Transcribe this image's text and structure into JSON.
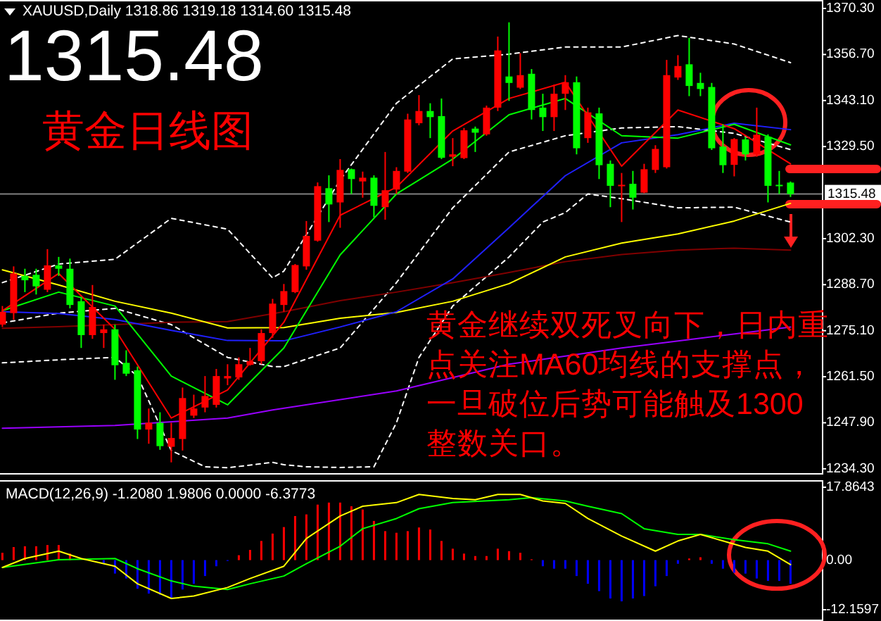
{
  "chart_data": [
    {
      "type": "candlestick",
      "title": "XAUUSD,Daily 1318.86 1319.18 1314.60 1315.48",
      "annotations": [
        "1315.48",
        "黄金日线图",
        "黄金继续双死叉向下，日内重",
        "点关注MA60均线的支撑点，",
        "一旦破位后势可能触及1300",
        "整数关口。"
      ],
      "categories": [
        null,
        null,
        null,
        null,
        null,
        null,
        null,
        null,
        null,
        null,
        null,
        null,
        null,
        null,
        null,
        null,
        null,
        null,
        null,
        null,
        null,
        null,
        null,
        null,
        null,
        null,
        null,
        null,
        null,
        null,
        null,
        null,
        null,
        null,
        null,
        null,
        null,
        null,
        null,
        null,
        null,
        null,
        null,
        null,
        null,
        null,
        null,
        null,
        null,
        null,
        null,
        null,
        null,
        null,
        null,
        null,
        null,
        null,
        null,
        null,
        null,
        null,
        null,
        null,
        null,
        null,
        null,
        null,
        null,
        null,
        null
      ],
      "ohlc": [
        [
          1276.9,
          1282.4,
          1276.2,
          1280.7
        ],
        [
          1280.3,
          1294.1,
          1278.3,
          1292.0
        ],
        [
          1291.3,
          1293.4,
          1286.5,
          1290.0
        ],
        [
          1291.6,
          1293.4,
          1285.8,
          1288.2
        ],
        [
          1287.2,
          1299.2,
          1286.5,
          1294.4
        ],
        [
          1294.4,
          1296.9,
          1291.3,
          1293.4
        ],
        [
          1293.4,
          1296.4,
          1281.7,
          1282.7
        ],
        [
          1283.8,
          1285.1,
          1270.0,
          1273.8
        ],
        [
          1273.8,
          1288.6,
          1272.7,
          1282.1
        ],
        [
          1274.4,
          1276.9,
          1270.0,
          1275.5
        ],
        [
          1275.5,
          1276.9,
          1260.6,
          1264.9
        ],
        [
          1265.6,
          1269.3,
          1261.7,
          1262.4
        ],
        [
          1263.4,
          1264.5,
          1243.1,
          1245.9
        ],
        [
          1245.9,
          1252.1,
          1241.7,
          1247.9
        ],
        [
          1247.9,
          1251.0,
          1239.9,
          1241.0
        ],
        [
          1240.8,
          1247.9,
          1236.2,
          1243.4
        ],
        [
          1243.1,
          1258.3,
          1239.7,
          1255.2
        ],
        [
          1250.0,
          1256.2,
          1249.3,
          1252.1
        ],
        [
          1252.4,
          1261.7,
          1251.0,
          1255.8
        ],
        [
          1253.2,
          1263.8,
          1252.4,
          1261.7
        ],
        [
          1261.0,
          1265.2,
          1259.0,
          1261.7
        ],
        [
          1261.3,
          1267.2,
          1260.6,
          1265.2
        ],
        [
          1265.0,
          1270.0,
          1264.8,
          1266.1
        ],
        [
          1266.1,
          1275.5,
          1265.2,
          1274.4
        ],
        [
          1274.4,
          1284.5,
          1273.0,
          1283.1
        ],
        [
          1282.7,
          1288.9,
          1280.7,
          1286.8
        ],
        [
          1286.5,
          1294.8,
          1286.2,
          1294.5
        ],
        [
          1294.1,
          1307.5,
          1293.1,
          1303.1
        ],
        [
          1301.7,
          1318.9,
          1301.4,
          1317.8
        ],
        [
          1317.2,
          1321.0,
          1307.2,
          1312.4
        ],
        [
          1313.0,
          1325.8,
          1305.5,
          1322.6
        ],
        [
          1322.8,
          1323.0,
          1315.5,
          1319.9
        ],
        [
          1319.2,
          1322.1,
          1314.4,
          1320.3
        ],
        [
          1320.3,
          1321.0,
          1308.6,
          1312.0
        ],
        [
          1311.6,
          1327.9,
          1307.9,
          1316.6
        ],
        [
          1316.8,
          1323.4,
          1315.5,
          1322.3
        ],
        [
          1322.1,
          1339.2,
          1321.7,
          1337.5
        ],
        [
          1336.4,
          1344.7,
          1335.8,
          1340.0
        ],
        [
          1340.0,
          1342.3,
          1332.0,
          1338.2
        ],
        [
          1338.5,
          1343.7,
          1325.8,
          1326.2
        ],
        [
          1326.5,
          1332.0,
          1323.7,
          1327.2
        ],
        [
          1326.1,
          1335.0,
          1325.8,
          1334.3
        ],
        [
          1334.8,
          1335.4,
          1327.9,
          1333.6
        ],
        [
          1333.1,
          1341.6,
          1332.7,
          1341.0
        ],
        [
          1341.0,
          1362.0,
          1340.0,
          1357.9
        ],
        [
          1350.2,
          1366.2,
          1343.0,
          1348.3
        ],
        [
          1346.9,
          1357.1,
          1346.5,
          1350.6
        ],
        [
          1351.0,
          1352.4,
          1337.5,
          1340.3
        ],
        [
          1341.0,
          1345.1,
          1334.1,
          1338.2
        ],
        [
          1338.2,
          1347.8,
          1334.1,
          1345.1
        ],
        [
          1345.1,
          1350.6,
          1340.3,
          1348.5
        ],
        [
          1348.5,
          1350.2,
          1327.2,
          1329.0
        ],
        [
          1332.0,
          1341.0,
          1330.6,
          1339.6
        ],
        [
          1339.3,
          1341.0,
          1319.9,
          1324.0
        ],
        [
          1324.4,
          1325.4,
          1311.6,
          1317.9
        ],
        [
          1317.9,
          1321.7,
          1307.2,
          1318.2
        ],
        [
          1318.5,
          1322.3,
          1310.9,
          1314.4
        ],
        [
          1315.9,
          1324.4,
          1315.7,
          1322.8
        ],
        [
          1322.6,
          1329.9,
          1321.7,
          1328.8
        ],
        [
          1323.4,
          1355.1,
          1323.0,
          1350.6
        ],
        [
          1349.9,
          1356.5,
          1349.2,
          1353.3
        ],
        [
          1353.8,
          1361.6,
          1344.4,
          1347.4
        ],
        [
          1348.3,
          1351.3,
          1344.4,
          1346.5
        ],
        [
          1347.1,
          1348.3,
          1328.5,
          1329.0
        ],
        [
          1329.5,
          1336.1,
          1321.7,
          1324.0
        ],
        [
          1324.1,
          1332.0,
          1320.7,
          1331.7
        ],
        [
          1331.6,
          1332.4,
          1325.4,
          1327.2
        ],
        [
          1327.2,
          1341.0,
          1326.5,
          1333.0
        ],
        [
          1332.4,
          1333.1,
          1313.0,
          1317.9
        ],
        [
          1318.2,
          1322.3,
          1315.5,
          1317.9
        ],
        [
          1318.86,
          1319.18,
          1314.6,
          1315.48
        ]
      ],
      "colors": [
        "#ff0000",
        "#ff0000",
        "#00ff00",
        "#00ff00",
        "#ff0000",
        "#00ff00",
        "#00ff00",
        "#00ff00",
        "#ff0000",
        "#ff0000",
        "#00ff00",
        "#00ff00",
        "#00ff00",
        "#ff0000",
        "#00ff00",
        "#ff0000",
        "#ff0000",
        "#ff0000",
        "#ff0000",
        "#ff0000",
        "#ff0000",
        "#ff0000",
        "#ff0000",
        "#ff0000",
        "#ff0000",
        "#ff0000",
        "#ff0000",
        "#ff0000",
        "#ff0000",
        "#00ff00",
        "#ff0000",
        "#00ff00",
        "#ff0000",
        "#00ff00",
        "#ff0000",
        "#ff0000",
        "#ff0000",
        "#ff0000",
        "#00ff00",
        "#00ff00",
        "#ff0000",
        "#ff0000",
        "#00ff00",
        "#ff0000",
        "#ff0000",
        "#00ff00",
        "#ff0000",
        "#00ff00",
        "#00ff00",
        "#ff0000",
        "#ff0000",
        "#00ff00",
        "#ff0000",
        "#00ff00",
        "#00ff00",
        "#ff0000",
        "#00ff00",
        "#ff0000",
        "#ff0000",
        "#ff0000",
        "#ff0000",
        "#00ff00",
        "#00ff00",
        "#00ff00",
        "#00ff00",
        "#ff0000",
        "#00ff00",
        "#ff0000",
        "#00ff00",
        "#00ff00",
        "#00ff00"
      ],
      "series": [
        {
          "type": "line",
          "color": "#ffffff",
          "line_style": "dashed",
          "values": [
            1289.3,
            null,
            null,
            null,
            null,
            1294.8,
            null,
            null,
            null,
            null,
            1296.2,
            null,
            null,
            null,
            null,
            1308.3,
            null,
            null,
            null,
            null,
            1305.1,
            null,
            null,
            null,
            1290.7,
            1292.7,
            null,
            null,
            null,
            null,
            1319.6,
            null,
            null,
            null,
            null,
            1342.3,
            null,
            null,
            null,
            null,
            1355.4,
            null,
            null,
            null,
            null,
            1356.8,
            null,
            null,
            null,
            null,
            1358.9,
            null,
            null,
            null,
            null,
            1358.9,
            null,
            null,
            null,
            null,
            1362.3,
            null,
            null,
            null,
            null,
            1359.8,
            null,
            null,
            null,
            null,
            1354.3
          ]
        },
        {
          "type": "line",
          "color": "#ffffff",
          "line_style": "dashed",
          "values": [
            1277.4,
            null,
            null,
            null,
            null,
            1280.3,
            null,
            null,
            null,
            null,
            1281.7,
            null,
            null,
            null,
            null,
            1276.9,
            null,
            null,
            null,
            null,
            1267.2,
            null,
            null,
            null,
            1264.5,
            1264.5,
            null,
            null,
            null,
            null,
            1270.0,
            null,
            null,
            null,
            null,
            1289.3,
            null,
            null,
            null,
            null,
            1311.4,
            null,
            null,
            null,
            null,
            1327.9,
            null,
            null,
            null,
            null,
            1332.7,
            null,
            null,
            null,
            null,
            1335.0,
            null,
            null,
            null,
            null,
            1335.4,
            null,
            null,
            null,
            null,
            1333.4,
            null,
            null,
            null,
            null,
            1328.6
          ]
        },
        {
          "type": "line",
          "color": "#ffffff",
          "line_style": "dashed",
          "values": [
            1265.6,
            null,
            null,
            null,
            null,
            1266.5,
            null,
            null,
            null,
            null,
            1267.2,
            null,
            1261.7,
            null,
            null,
            1239.7,
            null,
            null,
            1234.9,
            null,
            1234.6,
            null,
            null,
            null,
            1236.2,
            1235.5,
            null,
            1234.9,
            null,
            null,
            1234.7,
            null,
            null,
            1234.9,
            null,
            1247.9,
            null,
            1267.2,
            null,
            null,
            1282.4,
            null,
            null,
            null,
            null,
            1296.9,
            null,
            null,
            1307.2,
            null,
            1310.0,
            null,
            1315.5,
            null,
            null,
            1314.1,
            null,
            null,
            null,
            null,
            1311.4,
            null,
            null,
            null,
            null,
            1311.6,
            null,
            null,
            null,
            null,
            1307.2
          ]
        },
        {
          "type": "line",
          "color": "#9900ff",
          "values": [
            1246.3,
            null,
            null,
            null,
            null,
            null,
            null,
            null,
            null,
            null,
            1247.1,
            null,
            null,
            null,
            null,
            null,
            null,
            null,
            null,
            null,
            1249.3,
            null,
            null,
            null,
            1251.7,
            null,
            null,
            null,
            null,
            null,
            null,
            null,
            null,
            null,
            null,
            1257.3,
            null,
            null,
            null,
            null,
            null,
            null,
            null,
            null,
            null,
            1265.2,
            null,
            null,
            null,
            null,
            null,
            null,
            null,
            null,
            null,
            1270.0,
            null,
            null,
            null,
            null,
            null,
            null,
            null,
            null,
            null,
            null,
            null,
            null,
            null,
            null,
            1276.2
          ]
        },
        {
          "type": "line",
          "color": "#800000",
          "values": [
            1275.8,
            null,
            null,
            null,
            null,
            1276.3,
            null,
            null,
            null,
            null,
            1276.9,
            null,
            null,
            null,
            null,
            1277.6,
            null,
            null,
            null,
            null,
            1277.8,
            null,
            null,
            null,
            null,
            1280.7,
            null,
            null,
            null,
            null,
            1284.0,
            null,
            null,
            null,
            null,
            1286.5,
            null,
            null,
            null,
            null,
            1289.3,
            null,
            null,
            null,
            null,
            1292.3,
            null,
            null,
            null,
            null,
            1295.5,
            null,
            null,
            null,
            null,
            1297.6,
            null,
            null,
            null,
            null,
            1298.9,
            null,
            null,
            null,
            null,
            1299.5,
            null,
            null,
            null,
            null,
            1298.9
          ]
        },
        {
          "type": "line",
          "color": "#ffff00",
          "values": [
            1293.1,
            null,
            null,
            null,
            null,
            1288.6,
            null,
            null,
            null,
            null,
            1283.8,
            null,
            null,
            null,
            null,
            1280.3,
            null,
            null,
            null,
            null,
            1275.9,
            null,
            null,
            null,
            null,
            1276.0,
            null,
            null,
            null,
            null,
            1278.8,
            null,
            null,
            null,
            null,
            1280.5,
            null,
            null,
            null,
            null,
            1283.8,
            null,
            null,
            null,
            null,
            1289.0,
            null,
            null,
            null,
            null,
            1296.9,
            null,
            null,
            null,
            null,
            1301.0,
            null,
            null,
            null,
            null,
            1303.7,
            null,
            null,
            null,
            null,
            1307.5,
            null,
            null,
            null,
            null,
            1312.7
          ]
        },
        {
          "type": "line",
          "color": "#2020ff",
          "values": [
            1280.7,
            null,
            null,
            null,
            null,
            1280.2,
            null,
            null,
            null,
            null,
            1278.4,
            null,
            null,
            null,
            null,
            1275.2,
            null,
            null,
            null,
            null,
            1272.2,
            null,
            null,
            null,
            null,
            1272.1,
            null,
            null,
            null,
            null,
            1276.2,
            null,
            null,
            null,
            null,
            1280.7,
            null,
            null,
            null,
            null,
            1290.4,
            null,
            null,
            null,
            null,
            1305.5,
            null,
            null,
            null,
            null,
            1320.9,
            null,
            null,
            null,
            null,
            1330.6,
            null,
            null,
            null,
            null,
            1333.0,
            null,
            null,
            null,
            null,
            1336.4,
            null,
            null,
            null,
            null,
            1334.5
          ]
        },
        {
          "type": "line",
          "color": "#00ff00",
          "values": [
            1281.0,
            null,
            null,
            null,
            null,
            1286.5,
            null,
            null,
            null,
            null,
            1282.4,
            null,
            null,
            null,
            null,
            1261.7,
            null,
            null,
            null,
            null,
            1253.2,
            null,
            null,
            null,
            null,
            1270.0,
            null,
            null,
            null,
            null,
            1297.5,
            null,
            null,
            null,
            null,
            1315.5,
            null,
            null,
            null,
            null,
            1325.8,
            null,
            null,
            null,
            null,
            1338.9,
            null,
            null,
            null,
            null,
            1343.7,
            null,
            null,
            null,
            null,
            1332.7,
            null,
            null,
            null,
            null,
            1332.0,
            null,
            null,
            null,
            null,
            1336.1,
            null,
            null,
            null,
            null,
            1330.0
          ]
        },
        {
          "type": "line",
          "color": "#ff0000",
          "values": [
            1281.0,
            null,
            null,
            null,
            null,
            1292.0,
            null,
            null,
            null,
            null,
            1275.5,
            null,
            null,
            null,
            null,
            1249.3,
            null,
            null,
            null,
            null,
            1257.6,
            null,
            null,
            null,
            null,
            1277.6,
            null,
            null,
            null,
            null,
            1309.2,
            null,
            null,
            null,
            null,
            1317.5,
            null,
            null,
            null,
            null,
            1334.1,
            null,
            null,
            null,
            null,
            1343.7,
            null,
            null,
            null,
            null,
            1348.5,
            null,
            null,
            null,
            null,
            1323.7,
            null,
            null,
            null,
            null,
            1340.3,
            null,
            null,
            null,
            null,
            1334.8,
            null,
            null,
            null,
            null,
            1324.4
          ]
        }
      ],
      "ref_lines": [
        {
          "axis": "y",
          "value": 1315.48,
          "label": "1315.48",
          "color": "#808080"
        }
      ],
      "ylim": [
        1232.6,
        1372.8
      ],
      "yticks": [
        {
          "value": 1370.3,
          "label": "1370.30"
        },
        {
          "value": 1356.7,
          "label": "1356.70"
        },
        {
          "value": 1343.1,
          "label": "1343.10"
        },
        {
          "value": 1329.5,
          "label": "1329.50"
        },
        {
          "value": 1302.3,
          "label": "1302.30"
        },
        {
          "value": 1288.7,
          "label": "1288.70"
        },
        {
          "value": 1275.1,
          "label": "1275.10"
        },
        {
          "value": 1261.5,
          "label": "1261.50"
        },
        {
          "value": 1247.9,
          "label": "1247.90"
        },
        {
          "value": 1234.3,
          "label": "1234.30"
        }
      ],
      "tick_labels": "y"
    },
    {
      "type": "bar",
      "title": "MACD(12,26,9) -1.2080 1.9806 0.0000 -6.3773",
      "categories": [
        null,
        null,
        null,
        null,
        null,
        null,
        null,
        null,
        null,
        null,
        null,
        null,
        null,
        null,
        null,
        null,
        null,
        null,
        null,
        null,
        null,
        null,
        null,
        null,
        null,
        null,
        null,
        null,
        null,
        null,
        null,
        null,
        null,
        null,
        null,
        null,
        null,
        null,
        null,
        null,
        null,
        null,
        null,
        null,
        null,
        null,
        null,
        null,
        null,
        null,
        null,
        null,
        null,
        null,
        null,
        null,
        null,
        null,
        null,
        null,
        null,
        null,
        null,
        null,
        null,
        null,
        null,
        null,
        null,
        null,
        null
      ],
      "series": [
        {
          "type": "bar",
          "values": [
            1.8,
            3.2,
            3.4,
            3.4,
            3.7,
            3.7,
            1.6,
            null,
            null,
            -0.9,
            -3.3,
            -4.5,
            -7.0,
            -8.2,
            -8.5,
            -9.4,
            -7.2,
            -5.8,
            -3.9,
            -1.5,
            -0.2,
            1.2,
            2.5,
            4.7,
            6.5,
            8.1,
            10.8,
            11.2,
            13.6,
            14.1,
            14.1,
            13.2,
            12.4,
            9.6,
            7.1,
            6.7,
            7.1,
            8.0,
            7.5,
            4.7,
            2.8,
            1.6,
            1.0,
            1.0,
            2.8,
            2.2,
            1.8,
            0.2,
            -1.5,
            -2.1,
            -2.1,
            -3.9,
            -5.8,
            -7.6,
            -9.4,
            -10.1,
            -9.4,
            -8.8,
            -6.4,
            -3.9,
            -0.9,
            0.4,
            0.7,
            -0.9,
            -2.1,
            -3.1,
            -3.3,
            -4.5,
            -5.1,
            -5.1,
            -5.8
          ],
          "colors": [
            "#ff0000",
            "#ff0000",
            "#ff0000",
            "#ff0000",
            "#ff0000",
            "#ff0000",
            "#ff0000",
            null,
            null,
            "#0000ff",
            "#0000ff",
            "#0000ff",
            "#0000ff",
            "#0000ff",
            "#0000ff",
            "#0000ff",
            "#0000ff",
            "#0000ff",
            "#0000ff",
            "#0000ff",
            "#0000ff",
            "#ff0000",
            "#ff0000",
            "#ff0000",
            "#ff0000",
            "#ff0000",
            "#ff0000",
            "#ff0000",
            "#ff0000",
            "#ff0000",
            "#ff0000",
            "#ff0000",
            "#ff0000",
            "#ff0000",
            "#ff0000",
            "#ff0000",
            "#ff0000",
            "#ff0000",
            "#ff0000",
            "#ff0000",
            "#ff0000",
            "#ff0000",
            "#ff0000",
            "#ff0000",
            "#ff0000",
            "#ff0000",
            "#ff0000",
            "#ff0000",
            "#0000ff",
            "#0000ff",
            "#0000ff",
            "#0000ff",
            "#0000ff",
            "#0000ff",
            "#0000ff",
            "#0000ff",
            "#0000ff",
            "#0000ff",
            "#0000ff",
            "#0000ff",
            "#0000ff",
            "#ff0000",
            "#ff0000",
            "#0000ff",
            "#0000ff",
            "#0000ff",
            "#0000ff",
            "#0000ff",
            "#0000ff",
            "#0000ff",
            "#0000ff"
          ]
        },
        {
          "type": "line",
          "color": "#00ff00",
          "values": [
            -1.8,
            null,
            null,
            null,
            null,
            0.1,
            null,
            null,
            null,
            null,
            0.4,
            null,
            -2.1,
            null,
            null,
            -5.1,
            null,
            -6.4,
            null,
            null,
            -7.2,
            null,
            -5.8,
            null,
            null,
            -3.9,
            null,
            -0.9,
            null,
            null,
            3.4,
            null,
            7.7,
            null,
            null,
            10.2,
            null,
            12.6,
            null,
            null,
            14.1,
            null,
            null,
            null,
            null,
            14.8,
            null,
            15.3,
            null,
            null,
            14.5,
            null,
            13.2,
            null,
            null,
            11.4,
            null,
            7.7,
            null,
            null,
            6.3,
            null,
            6.3,
            null,
            null,
            5.0,
            null,
            null,
            4.0,
            null,
            2.2
          ]
        },
        {
          "type": "line",
          "color": "#ffff00",
          "values": [
            -1.8,
            null,
            0.4,
            null,
            null,
            2.2,
            null,
            0.4,
            null,
            null,
            -1.5,
            null,
            -5.8,
            null,
            null,
            -9.4,
            null,
            -8.8,
            null,
            null,
            -6.7,
            null,
            -4.5,
            null,
            null,
            -1.5,
            null,
            5.3,
            null,
            null,
            10.8,
            null,
            13.2,
            null,
            null,
            14.1,
            null,
            16.1,
            null,
            null,
            15.1,
            null,
            14.8,
            null,
            16.1,
            null,
            16.1,
            null,
            14.5,
            null,
            13.9,
            null,
            10.2,
            null,
            null,
            5.9,
            null,
            null,
            2.2,
            null,
            4.7,
            null,
            6.3,
            null,
            4.7,
            null,
            3.1,
            null,
            2.2,
            null,
            -1.1
          ]
        }
      ],
      "ylim": [
        -14.92,
        19.59
      ],
      "yticks": [
        {
          "value": 17.8643,
          "label": "17.8643"
        },
        {
          "value": 0,
          "label": "0.00"
        },
        {
          "value": -12.1597,
          "label": "-12.1597"
        }
      ],
      "tick_labels": "y"
    }
  ]
}
